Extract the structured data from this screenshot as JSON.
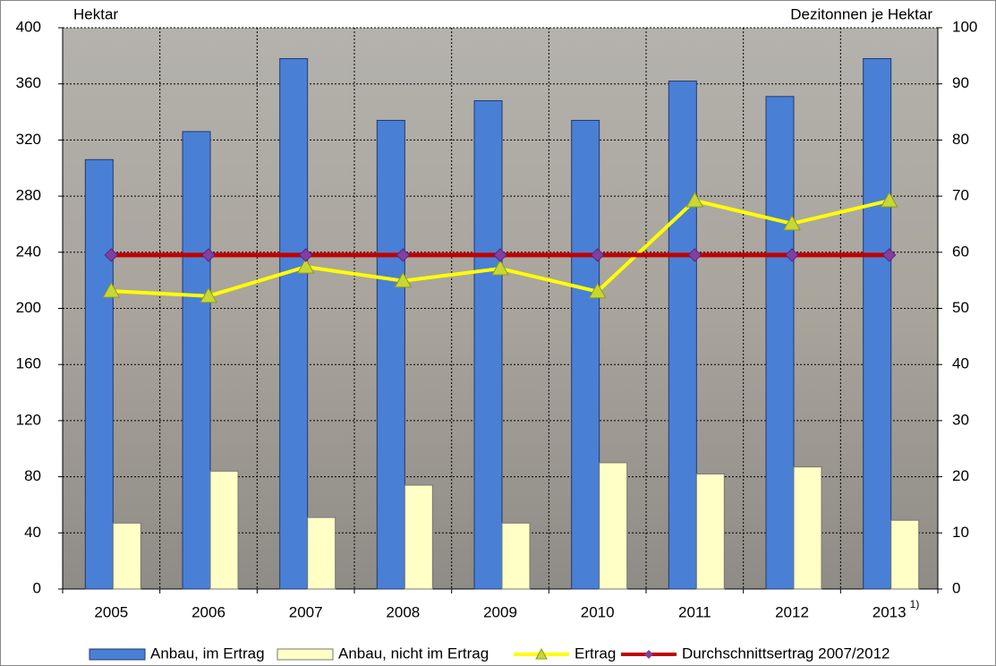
{
  "chart_data": {
    "type": "bar",
    "y_label": "Hektar",
    "y2_label": "Dezitonnen je Hektar",
    "categories": [
      "2005",
      "2006",
      "2007",
      "2008",
      "2009",
      "2010",
      "2011",
      "2012",
      "2013"
    ],
    "category_notes": [
      null,
      null,
      null,
      null,
      null,
      null,
      null,
      null,
      "1)"
    ],
    "series": [
      {
        "name": "Anbau, im Ertrag",
        "type": "bar",
        "color": "#4a7fd6",
        "values": [
          306,
          326,
          378,
          334,
          348,
          334,
          362,
          351,
          378
        ]
      },
      {
        "name": "Anbau, nicht im Ertrag",
        "type": "bar",
        "color": "#ffffc6",
        "values": [
          47,
          84,
          51,
          74,
          47,
          90,
          82,
          87,
          49
        ]
      },
      {
        "name": "Ertrag",
        "type": "line",
        "axis": "y2",
        "marker": "triangle",
        "color": "#ffff00",
        "marker_color": "#c8d832",
        "values": [
          53.1,
          52.2,
          57.4,
          54.9,
          57.1,
          53.0,
          69.2,
          65.1,
          69.2
        ]
      },
      {
        "name": "Durchschnittsertrag 2007/2012",
        "type": "line",
        "axis": "y2",
        "marker": "diamond",
        "color": "#c00000",
        "marker_color": "#8040a0",
        "values": [
          59.5,
          59.5,
          59.5,
          59.5,
          59.5,
          59.5,
          59.5,
          59.5,
          59.5
        ]
      }
    ],
    "ylim": [
      0,
      400
    ],
    "yticks": [
      0,
      40,
      80,
      120,
      160,
      200,
      240,
      280,
      320,
      360,
      400
    ],
    "y2lim": [
      0,
      100
    ],
    "y2ticks": [
      0,
      10,
      20,
      30,
      40,
      50,
      60,
      70,
      80,
      90,
      100
    ],
    "grid": true,
    "legend": "bottom"
  }
}
